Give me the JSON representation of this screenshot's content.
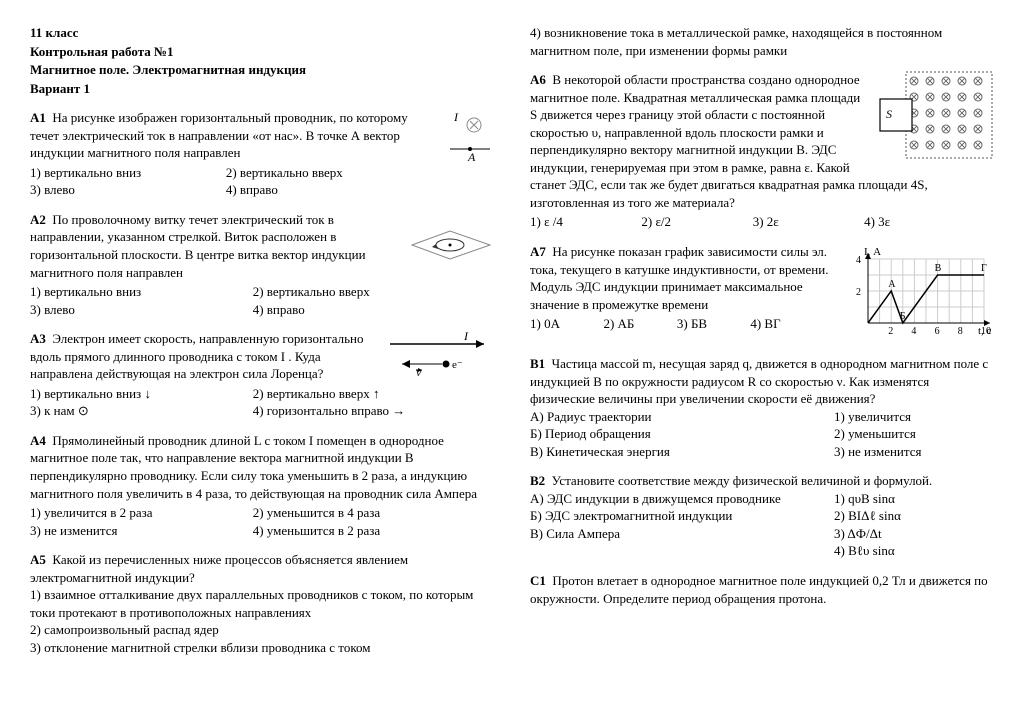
{
  "header": {
    "grade": "11 класс",
    "title": "Контрольная работа №1",
    "subject": "Магнитное поле. Электромагнитная индукция",
    "variant": "Вариант 1"
  },
  "a1": {
    "label": "А1",
    "text": "На рисунке изображен горизонтальный проводник, по которому течет электрический ток в направлении «от нас». В точке А вектор индукции магнитного поля направлен",
    "o1": "1) вертикально вниз",
    "o2": "2) вертикально вверх",
    "o3": "3) влево",
    "o4": "4) вправо",
    "fig": {
      "I": "I",
      "A": "A"
    }
  },
  "a2": {
    "label": "А2",
    "text": "По проволочному витку течет электрический ток в направлении, указанном стрелкой. Виток расположен в горизонтальной плоскости. В центре витка вектор индукции магнитного поля направлен",
    "o1": "1) вертикально вниз",
    "o2": "2) вертикально вверх",
    "o3": "3) влево",
    "o4": "4) вправо"
  },
  "a3": {
    "label": "А3",
    "text": "Электрон имеет скорость, направленную горизонтально вдоль прямого длинного проводника с током I . Куда направлена действующая на электрон сила Лоренца?",
    "o1": "1) вертикально вниз ↓",
    "o2": "2) вертикально вверх ↑",
    "o3": "3) к нам ⊙",
    "o4": "4) горизонтально вправо →",
    "fig": {
      "I": "I",
      "v": "v",
      "e": "e⁻"
    }
  },
  "a4": {
    "label": "А4",
    "text": "Прямолинейный проводник длиной L с током I помещен в однородное магнитное поле так, что направление вектора магнитной индукции B перпендикулярно проводнику. Если силу тока уменьшить в 2 раза, а индукцию магнитного поля увеличить в 4 раза, то действующая на проводник сила Ампера",
    "o1": "1) увеличится в 2 раза",
    "o2": "2) уменьшится в 4 раза",
    "o3": "3) не изменится",
    "o4": "4) уменьшится в 2 раза"
  },
  "a5": {
    "label": "А5",
    "text": "Какой из перечисленных ниже процессов объясняется явлением электромагнитной индукции?",
    "o1": "1) взаимное отталкивание двух параллельных проводников с током, по которым токи протекают в противоположных направлениях",
    "o2": "2) самопроизвольный распад ядер",
    "o3": "3) отклонение магнитной стрелки вблизи проводника с током",
    "o4": "4) возникновение тока в металлической рамке, находящейся в постоянном магнитном поле, при изменении формы рамки"
  },
  "a6": {
    "label": "А6",
    "text": "В некоторой области пространства создано однородное магнитное поле. Квадратная металлическая рамка площади S движется через границу этой области с постоянной скоростью υ, направленной вдоль плоскости рамки и перпендикулярно вектору магнитной индукции В. ЭДС индукции, генерируемая при этом в рамке, равна ε. Какой станет ЭДС, если так же будет двигаться квадратная рамка площади 4S, изготовленная из того же материала?",
    "o1": "1) ε /4",
    "o2": "2) ε/2",
    "o3": "3) 2ε",
    "o4": "4) 3ε",
    "fig": {
      "S": "S"
    }
  },
  "a7": {
    "label": "А7",
    "text": "На рисунке показан график зависимости силы эл. тока, текущего в катушке индуктивности, от времени. Модуль ЭДС индукции принимает максимальное значение в промежутке времени",
    "o1": "1) 0А",
    "o2": "2) АБ",
    "o3": "3) БВ",
    "o4": "4) ВГ",
    "fig": {
      "ylabel": "I, А",
      "xlabel": "t, с",
      "ymax": 4,
      "ytick": 2,
      "xmax": 10,
      "xtick": 2,
      "points": [
        [
          0,
          0
        ],
        [
          2,
          2
        ],
        [
          3,
          0
        ],
        [
          6,
          3
        ],
        [
          10,
          3
        ]
      ],
      "labels": {
        "A": "А",
        "B": "Б",
        "V": "В",
        "G": "Г"
      }
    }
  },
  "b1": {
    "label": "B1",
    "text": "Частица массой m, несущая заряд q, движется в однородном магнитном поле с индукцией B по окружности радиусом R со скоростью ν. Как изменятся физические величины при увеличении скорости её движения?",
    "lA": "А) Радиус траектории",
    "lB": "Б) Период обращения",
    "lC": "В) Кинетическая энергия",
    "r1": "1) увеличится",
    "r2": "2) уменьшится",
    "r3": "3) не изменится"
  },
  "b2": {
    "label": "B2",
    "text": "Установите соответствие между физической величиной и формулой.",
    "lA": "А) ЭДС индукции в движущемся проводнике",
    "lB": "Б) ЭДС электромагнитной индукции",
    "lC": "В) Сила Ампера",
    "r1": "1) qυB sinα",
    "r2": "2) BIΔℓ sinα",
    "r3": "3) ΔФ/Δt",
    "r4": "4) Bℓυ sinα"
  },
  "c1": {
    "label": "С1",
    "text": "Протон влетает в однородное магнитное поле индукцией 0,2 Тл и движется по окружности. Определите период обращения протона."
  }
}
